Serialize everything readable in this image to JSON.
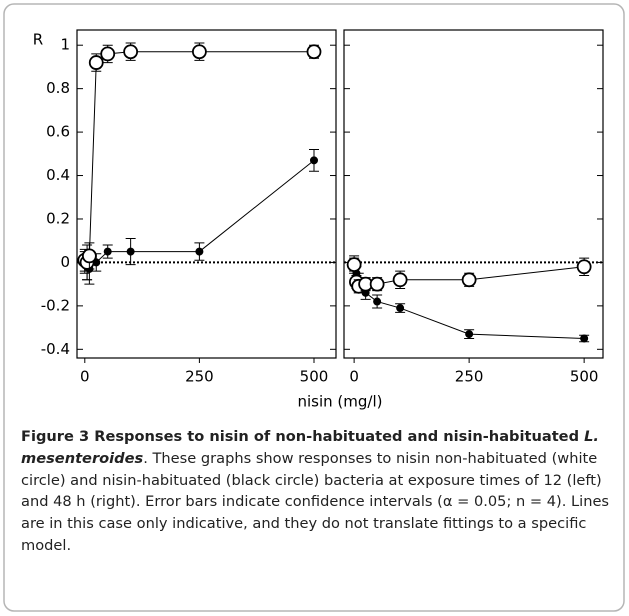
{
  "chart_data": [
    {
      "type": "line",
      "ylabel": "R",
      "xlabel": "nisin (mg/l)",
      "x": [
        0,
        5,
        10,
        25,
        50,
        100,
        250,
        500
      ],
      "series": [
        {
          "color": "#000000",
          "values": [
            0.0,
            -0.02,
            -0.03,
            0.0,
            0.05,
            0.05,
            0.05,
            0.47
          ],
          "errors": [
            0.05,
            0.06,
            0.07,
            0.04,
            0.03,
            0.06,
            0.04,
            0.05
          ]
        },
        {
          "color": "#ffffff",
          "values": [
            0.01,
            0.0,
            0.03,
            0.92,
            0.96,
            0.97,
            0.97,
            0.97
          ],
          "errors": [
            0.05,
            0.08,
            0.06,
            0.04,
            0.04,
            0.04,
            0.04,
            0.03
          ]
        }
      ],
      "xlim": [
        -17,
        548
      ],
      "xticks": [
        0,
        250,
        500
      ],
      "ylim": [
        -0.44,
        1.07
      ],
      "yticks": [
        -0.4,
        -0.2,
        0,
        0.2,
        0.4,
        0.6,
        0.8,
        1
      ],
      "zero_line": true
    },
    {
      "type": "line",
      "x": [
        0,
        5,
        10,
        25,
        50,
        100,
        250,
        500
      ],
      "series": [
        {
          "color": "#000000",
          "values": [
            -0.01,
            -0.05,
            -0.08,
            -0.14,
            -0.18,
            -0.21,
            -0.33,
            -0.35
          ],
          "errors": [
            0.03,
            0.03,
            0.03,
            0.03,
            0.03,
            0.02,
            0.02,
            0.015
          ]
        },
        {
          "color": "#ffffff",
          "values": [
            -0.01,
            -0.09,
            -0.11,
            -0.1,
            -0.1,
            -0.08,
            -0.08,
            -0.02
          ],
          "errors": [
            0.04,
            0.03,
            0.03,
            0.03,
            0.03,
            0.04,
            0.03,
            0.04
          ]
        }
      ],
      "xlim": [
        -22,
        541
      ],
      "xticks": [
        0,
        250,
        500
      ],
      "ylim": [
        -0.44,
        1.07
      ],
      "zero_line": true
    }
  ],
  "caption": {
    "title": "Figure 3 Responses to nisin of non-habituated and nisin-habituated ",
    "species": "L. mesenteroides",
    "text": ". These graphs show responses to nisin non-habituated (white circle) and nisin-habituated (black circle) bacteria at exposure times of 12 (left) and 48 h (right). Error bars indicate confidence intervals (α = 0.05; n = 4). Lines are in this case only indicative, and they do not translate fittings to a specific model."
  }
}
